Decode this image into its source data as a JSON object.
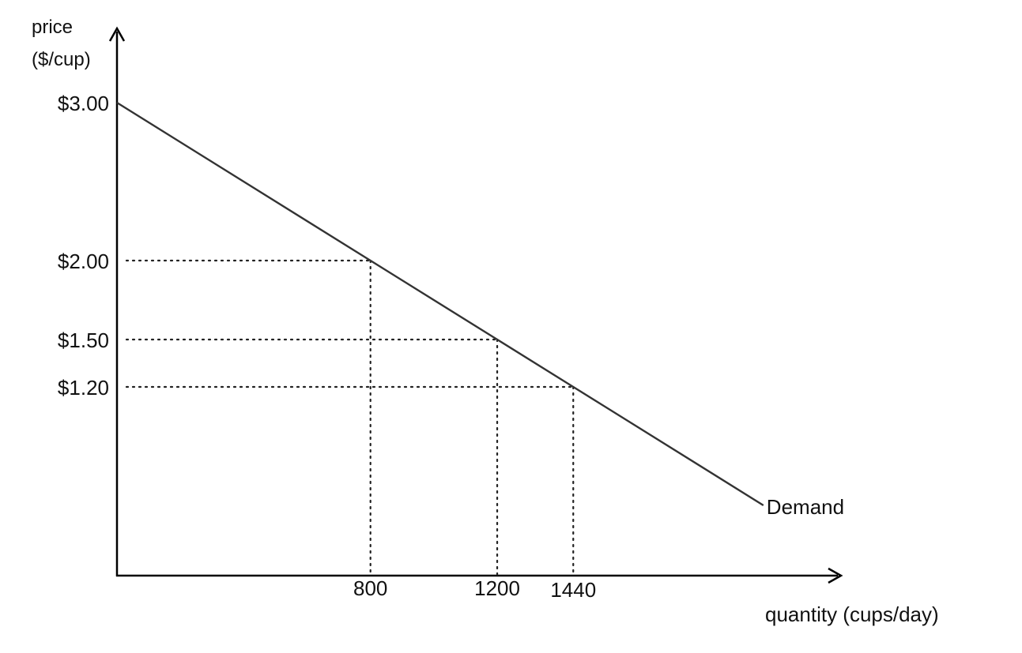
{
  "chart_data": {
    "type": "line",
    "ylabel_line1": "price",
    "ylabel_line2": "($/cup)",
    "xlabel": "quantity (cups/day)",
    "series": [
      {
        "name": "Demand",
        "x": [
          0,
          800,
          1200,
          1440,
          2040
        ],
        "y": [
          3.0,
          2.0,
          1.5,
          1.2,
          0.45
        ]
      }
    ],
    "highlight_points": [
      {
        "x": 800,
        "y": 2.0
      },
      {
        "x": 1200,
        "y": 1.5
      },
      {
        "x": 1440,
        "y": 1.2
      }
    ],
    "y_ticks": [
      {
        "value": 3.0,
        "label": "$3.00"
      },
      {
        "value": 2.0,
        "label": "$2.00"
      },
      {
        "value": 1.5,
        "label": "$1.50"
      },
      {
        "value": 1.2,
        "label": "$1.20"
      }
    ],
    "x_ticks": [
      {
        "value": 800,
        "label": "800"
      },
      {
        "value": 1200,
        "label": "1200"
      },
      {
        "value": 1440,
        "label": "1440"
      }
    ],
    "xlim": [
      0,
      2270
    ],
    "ylim": [
      0,
      3.35
    ],
    "grid": false,
    "legend": "none",
    "guide_lines": "dotted"
  }
}
